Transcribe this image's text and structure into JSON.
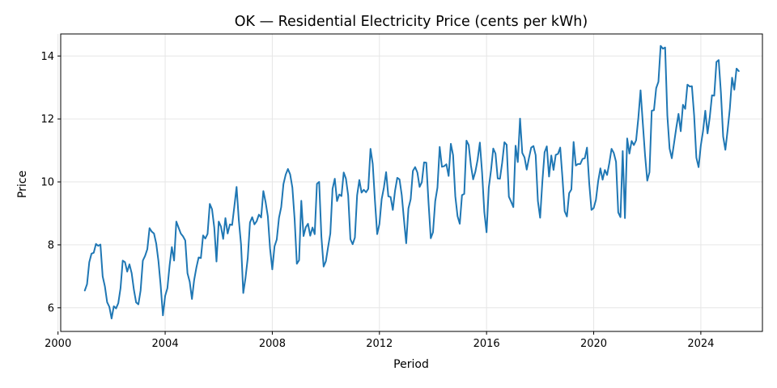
{
  "chart_data": {
    "type": "line",
    "title": "OK — Residential Electricity Price (cents per kWh)",
    "xlabel": "Period",
    "ylabel": "Price",
    "xlim": [
      2000.1,
      2026.3
    ],
    "ylim": [
      5.25,
      14.7
    ],
    "x_ticks": [
      2000,
      2004,
      2008,
      2012,
      2016,
      2020,
      2024
    ],
    "y_ticks": [
      6,
      8,
      10,
      12,
      14
    ],
    "grid": true,
    "line_color": "#1f77b4",
    "x_start": "2001-01",
    "x_step": "monthly",
    "series": [
      {
        "values": [
          6.55,
          6.75,
          7.45,
          7.72,
          7.75,
          8.03,
          7.97,
          8.01,
          7.0,
          6.68,
          6.18,
          6.03,
          5.66,
          6.05,
          5.98,
          6.15,
          6.62,
          7.5,
          7.45,
          7.15,
          7.38,
          7.1,
          6.57,
          6.17,
          6.11,
          6.55,
          7.5,
          7.65,
          7.86,
          8.53,
          8.42,
          8.36,
          8.04,
          7.48,
          6.7,
          5.76,
          6.38,
          6.62,
          7.35,
          7.93,
          7.5,
          8.74,
          8.55,
          8.36,
          8.27,
          8.14,
          7.1,
          6.83,
          6.28,
          6.89,
          7.28,
          7.6,
          7.58,
          8.3,
          8.2,
          8.35,
          9.3,
          9.13,
          8.55,
          7.47,
          8.74,
          8.58,
          8.19,
          8.85,
          8.36,
          8.65,
          8.63,
          9.22,
          9.84,
          8.79,
          8.01,
          6.47,
          6.95,
          7.58,
          8.71,
          8.88,
          8.65,
          8.75,
          8.96,
          8.87,
          9.71,
          9.36,
          8.91,
          7.88,
          7.22,
          7.95,
          8.17,
          8.86,
          9.2,
          9.93,
          10.23,
          10.41,
          10.24,
          9.82,
          8.82,
          7.4,
          7.51,
          9.4,
          8.28,
          8.56,
          8.67,
          8.29,
          8.55,
          8.34,
          9.94,
          10.0,
          8.26,
          7.31,
          7.48,
          7.93,
          8.36,
          9.78,
          10.1,
          9.39,
          9.6,
          9.55,
          10.3,
          10.1,
          9.57,
          8.18,
          8.02,
          8.23,
          9.57,
          10.06,
          9.66,
          9.75,
          9.67,
          9.78,
          11.05,
          10.57,
          9.4,
          8.34,
          8.66,
          9.45,
          9.82,
          10.31,
          9.54,
          9.52,
          9.11,
          9.72,
          10.13,
          10.08,
          9.58,
          8.8,
          8.05,
          9.16,
          9.45,
          10.35,
          10.47,
          10.3,
          9.84,
          9.99,
          10.62,
          10.61,
          9.34,
          8.21,
          8.4,
          9.39,
          9.82,
          11.11,
          10.48,
          10.5,
          10.56,
          10.19,
          11.21,
          10.85,
          9.54,
          8.91,
          8.67,
          9.58,
          9.62,
          11.31,
          11.17,
          10.52,
          10.08,
          10.33,
          10.71,
          11.25,
          10.29,
          9.04,
          8.4,
          9.82,
          10.37,
          11.06,
          10.9,
          10.11,
          10.1,
          10.61,
          11.26,
          11.18,
          9.53,
          9.37,
          9.2,
          11.15,
          10.63,
          12.01,
          10.92,
          10.78,
          10.39,
          10.76,
          11.09,
          11.14,
          10.85,
          9.39,
          8.86,
          10.01,
          10.94,
          11.13,
          10.17,
          10.84,
          10.38,
          10.86,
          10.89,
          11.09,
          10.13,
          9.07,
          8.9,
          9.64,
          9.76,
          11.27,
          10.52,
          10.57,
          10.57,
          10.73,
          10.75,
          11.09,
          9.95,
          9.11,
          9.17,
          9.43,
          10.02,
          10.43,
          10.07,
          10.38,
          10.22,
          10.6,
          11.05,
          10.92,
          10.64,
          9.03,
          8.88,
          10.98,
          8.85,
          11.38,
          10.9,
          11.3,
          11.17,
          11.32,
          12.03,
          12.91,
          11.87,
          10.86,
          10.04,
          10.31,
          12.26,
          12.28,
          12.98,
          13.18,
          14.32,
          14.23,
          14.27,
          12.11,
          11.06,
          10.75,
          11.23,
          11.72,
          12.16,
          11.61,
          12.45,
          12.32,
          13.09,
          13.03,
          13.04,
          12.11,
          10.77,
          10.47,
          11.16,
          11.62,
          12.26,
          11.54,
          12.05,
          12.75,
          12.74,
          13.81,
          13.87,
          12.83,
          11.44,
          11.02,
          11.64,
          12.33,
          13.31,
          12.93,
          13.6,
          13.52
        ]
      }
    ]
  }
}
